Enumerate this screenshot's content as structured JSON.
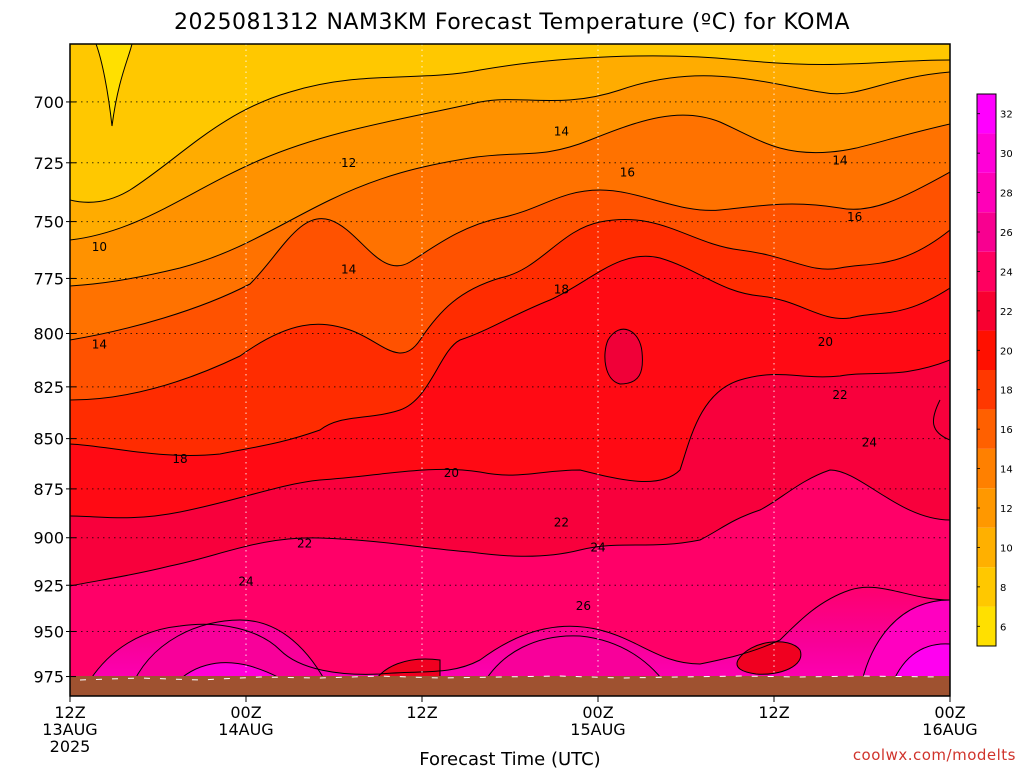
{
  "chart_data": {
    "type": "contour",
    "title": "2025081312 NAM3KM Forecast Temperature (ºC) for KOMA",
    "xlabel": "Forecast Time (UTC)",
    "ylabel": "",
    "credit": "coolwx.com/modelts",
    "x_ticks": [
      {
        "hour": 0,
        "lines": [
          "12Z",
          "13AUG",
          "2025"
        ]
      },
      {
        "hour": 12,
        "lines": [
          "00Z",
          "14AUG"
        ]
      },
      {
        "hour": 24,
        "lines": [
          "12Z"
        ]
      },
      {
        "hour": 36,
        "lines": [
          "00Z",
          "15AUG"
        ]
      },
      {
        "hour": 48,
        "lines": [
          "12Z"
        ]
      },
      {
        "hour": 60,
        "lines": [
          "00Z",
          "16AUG"
        ]
      }
    ],
    "xlim_hours": [
      0,
      60
    ],
    "y_ticks": [
      700,
      725,
      750,
      775,
      800,
      825,
      850,
      875,
      900,
      925,
      950,
      975
    ],
    "ylim_hpa": [
      677,
      986
    ],
    "y_scale": "log-pressure",
    "grid": true,
    "colorbar": {
      "labels": [
        6,
        8,
        10,
        12,
        14,
        16,
        18,
        20,
        22,
        24,
        26,
        28,
        30,
        32
      ],
      "colors": [
        "#ffe000",
        "#ffc800",
        "#ffb000",
        "#ff9800",
        "#ff8000",
        "#ff6000",
        "#ff3800",
        "#ff1000",
        "#f80030",
        "#ff0060",
        "#f80090",
        "#ff00b8",
        "#ff00d8",
        "#ff00ff"
      ]
    },
    "contour_labels": [
      {
        "value": "10",
        "hour": 2.0,
        "hpa": 761
      },
      {
        "value": "14",
        "hour": 2.0,
        "hpa": 805
      },
      {
        "value": "12",
        "hour": 19.0,
        "hpa": 725
      },
      {
        "value": "14",
        "hour": 19.0,
        "hpa": 771
      },
      {
        "value": "14",
        "hour": 33.5,
        "hpa": 712
      },
      {
        "value": "16",
        "hour": 38.0,
        "hpa": 729
      },
      {
        "value": "14",
        "hour": 52.5,
        "hpa": 724
      },
      {
        "value": "16",
        "hour": 53.5,
        "hpa": 748
      },
      {
        "value": "18",
        "hour": 7.5,
        "hpa": 860
      },
      {
        "value": "18",
        "hour": 33.5,
        "hpa": 780
      },
      {
        "value": "20",
        "hour": 51.5,
        "hpa": 804
      },
      {
        "value": "20",
        "hour": 26.0,
        "hpa": 867
      },
      {
        "value": "22",
        "hour": 52.5,
        "hpa": 829
      },
      {
        "value": "22",
        "hour": 16.0,
        "hpa": 903
      },
      {
        "value": "22",
        "hour": 33.5,
        "hpa": 892
      },
      {
        "value": "24",
        "hour": 54.5,
        "hpa": 852
      },
      {
        "value": "24",
        "hour": 12.0,
        "hpa": 923
      },
      {
        "value": "24",
        "hour": 36.0,
        "hpa": 905
      },
      {
        "value": "26",
        "hour": 35.0,
        "hpa": 936
      }
    ]
  }
}
